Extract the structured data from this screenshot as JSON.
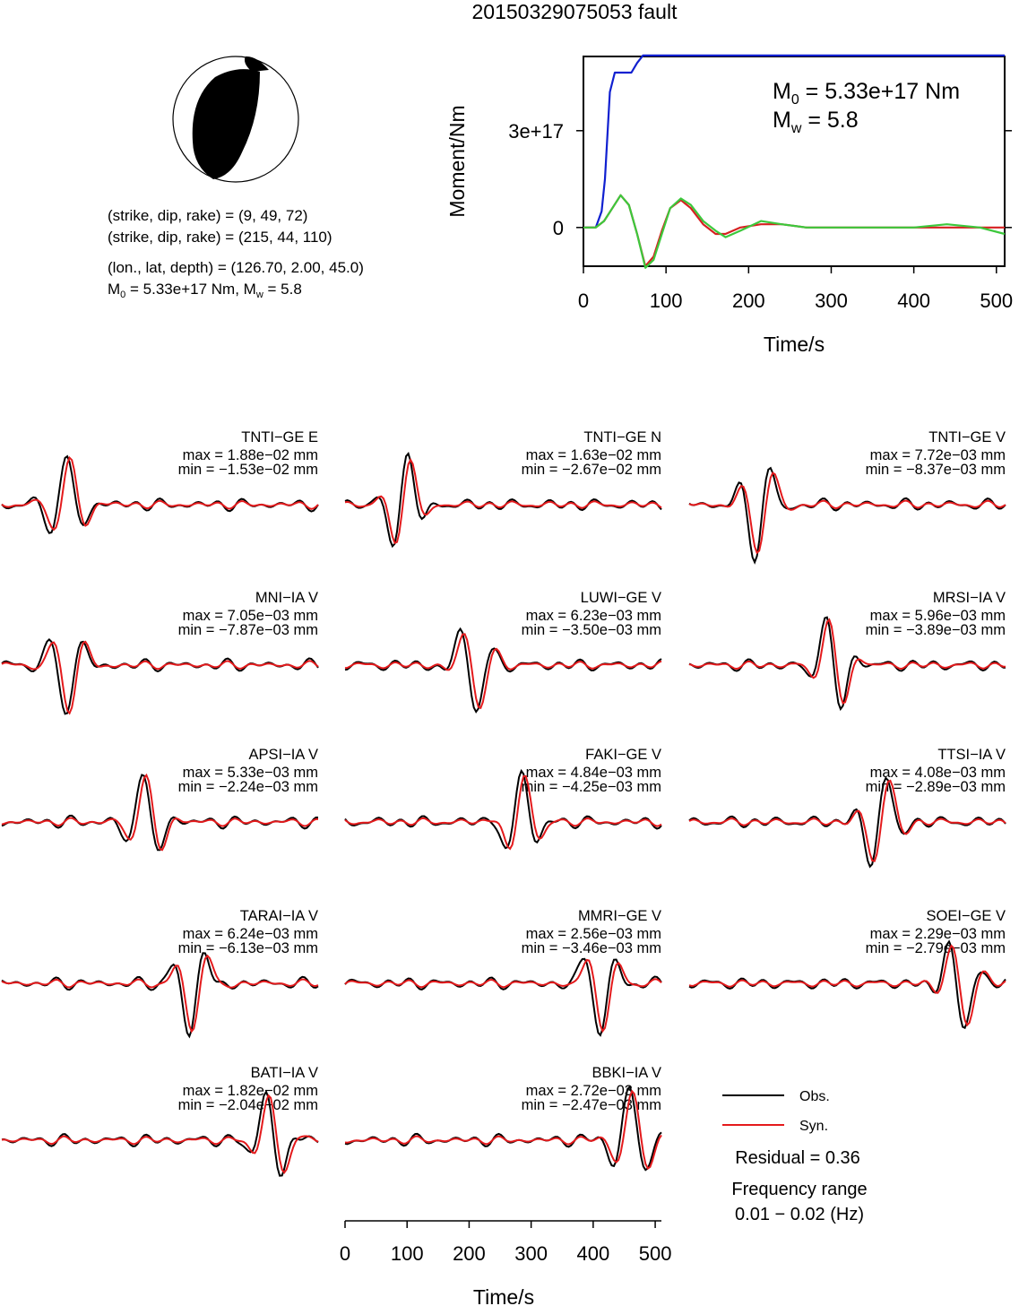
{
  "title": "20150329075053 fault",
  "focal_mechanism": {
    "line1": "(strike, dip, rake) = (9, 49, 72)",
    "line2": "(strike, dip, rake) = (215, 44, 110)",
    "line3": "(lon., lat, depth) = (126.70, 2.00, 45.0)",
    "line4_m0": "M",
    "line4_m0_sub": "0",
    "line4_m0_rest": " = 5.33e+17 Nm, M",
    "line4_mw_sub": "w",
    "line4_mw_rest": " = 5.8"
  },
  "moment_plot": {
    "ylabel": "Moment/Nm",
    "xlabel": "Time/s",
    "yticks": [
      "0",
      "3e+17"
    ],
    "xticks": [
      "0",
      "100",
      "200",
      "300",
      "400",
      "500"
    ],
    "m0_prefix": "M",
    "m0_sub": "0",
    "m0_rest": " = 5.33e+17 Nm",
    "mw_prefix": "M",
    "mw_sub": "w",
    "mw_rest": " = 5.8"
  },
  "waveform_axis": {
    "xlabel": "Time/s",
    "xticks": [
      "0",
      "100",
      "200",
      "300",
      "400",
      "500"
    ]
  },
  "legend": {
    "obs_label": "Obs.",
    "syn_label": "Syn.",
    "residual": "Residual = 0.36",
    "freq_title": "Frequency range",
    "freq_value": "0.01 − 0.02 (Hz)"
  },
  "colors": {
    "observed": "#000000",
    "synthetic": "#e41a1c",
    "moment_rate_obs": "#d62020",
    "moment_rate_syn": "#3cc83c",
    "cumulative": "#1020d0"
  },
  "chart_data": [
    {
      "type": "line",
      "title": "",
      "xlabel": "Time/s",
      "ylabel": "Moment/Nm",
      "xlim": [
        0,
        510
      ],
      "ylim": [
        -1.2e+17,
        5.3e+17
      ],
      "series": [
        {
          "x": [
            0,
            15,
            22,
            26,
            32,
            38,
            44,
            58,
            65,
            72,
            100,
            510
          ],
          "values": [
            0,
            0,
            5e+16,
            1.5e+17,
            4.2e+17,
            4.8e+17,
            4.8e+17,
            4.8e+17,
            5.1e+17,
            5.33e+17,
            5.33e+17,
            5.33e+17
          ]
        },
        {
          "x": [
            0,
            15,
            25,
            35,
            45,
            55,
            65,
            75,
            85,
            95,
            105,
            118,
            130,
            145,
            160,
            172,
            190,
            215,
            240,
            270,
            310,
            350,
            400,
            440,
            480,
            510
          ],
          "values": [
            0,
            0,
            2e+16,
            6e+16,
            1e+17,
            7e+16,
            -2e+16,
            -1.25e+17,
            -1e+17,
            -2e+16,
            6e+16,
            9e+16,
            7e+16,
            2e+16,
            -1e+16,
            -3e+16,
            -1e+16,
            2e+16,
            1e+16,
            0,
            0,
            0,
            0,
            1e+16,
            0,
            -2e+16
          ]
        },
        {
          "x": [
            0,
            15,
            25,
            35,
            45,
            55,
            65,
            75,
            85,
            95,
            105,
            118,
            130,
            145,
            160,
            172,
            190,
            215,
            240,
            270,
            310,
            350,
            400,
            440,
            480,
            510
          ],
          "values": [
            0,
            0,
            2e+16,
            6e+16,
            1e+17,
            7e+16,
            -2e+16,
            -1.2e+17,
            -9e+16,
            -1e+16,
            6e+16,
            8.5e+16,
            6e+16,
            1e+16,
            -2e+16,
            -2e+16,
            0,
            1e+16,
            1e+16,
            0,
            0,
            0,
            0,
            0,
            0,
            0
          ]
        }
      ]
    },
    {
      "type": "line",
      "panels": [
        {
          "station": "TNTI−GE E",
          "max": "max = 1.88e−02 mm",
          "min": "min = −1.53e−02 mm"
        },
        {
          "station": "TNTI−GE N",
          "max": "max = 1.63e−02 mm",
          "min": "min = −2.67e−02 mm"
        },
        {
          "station": "TNTI−GE V",
          "max": "max = 7.72e−03 mm",
          "min": "min = −8.37e−03 mm"
        },
        {
          "station": "MNI−IA V",
          "max": "max = 7.05e−03 mm",
          "min": "min = −7.87e−03 mm"
        },
        {
          "station": "LUWI−GE V",
          "max": "max = 6.23e−03 mm",
          "min": "min = −3.50e−03 mm"
        },
        {
          "station": "MRSI−IA V",
          "max": "max = 5.96e−03 mm",
          "min": "min = −3.89e−03 mm"
        },
        {
          "station": "APSI−IA V",
          "max": "max = 5.33e−03 mm",
          "min": "min = −2.24e−03 mm"
        },
        {
          "station": "FAKI−GE V",
          "max": "max = 4.84e−03 mm",
          "min": "min = −4.25e−03 mm"
        },
        {
          "station": "TTSI−IA V",
          "max": "max = 4.08e−03 mm",
          "min": "min = −2.89e−03 mm"
        },
        {
          "station": "TARAI−IA V",
          "max": "max = 6.24e−03 mm",
          "min": "min = −6.13e−03 mm"
        },
        {
          "station": "MMRI−GE V",
          "max": "max = 2.56e−03 mm",
          "min": "min = −3.46e−03 mm"
        },
        {
          "station": "SOEI−GE V",
          "max": "max = 2.29e−03 mm",
          "min": "min = −2.79e−03 mm"
        },
        {
          "station": "BATI−IA V",
          "max": "max = 1.82e−02 mm",
          "min": "min = −2.04e−02 mm"
        },
        {
          "station": "BBKI−IA V",
          "max": "max = 2.72e−03 mm",
          "min": "min = −2.47e−03 mm"
        }
      ]
    }
  ]
}
